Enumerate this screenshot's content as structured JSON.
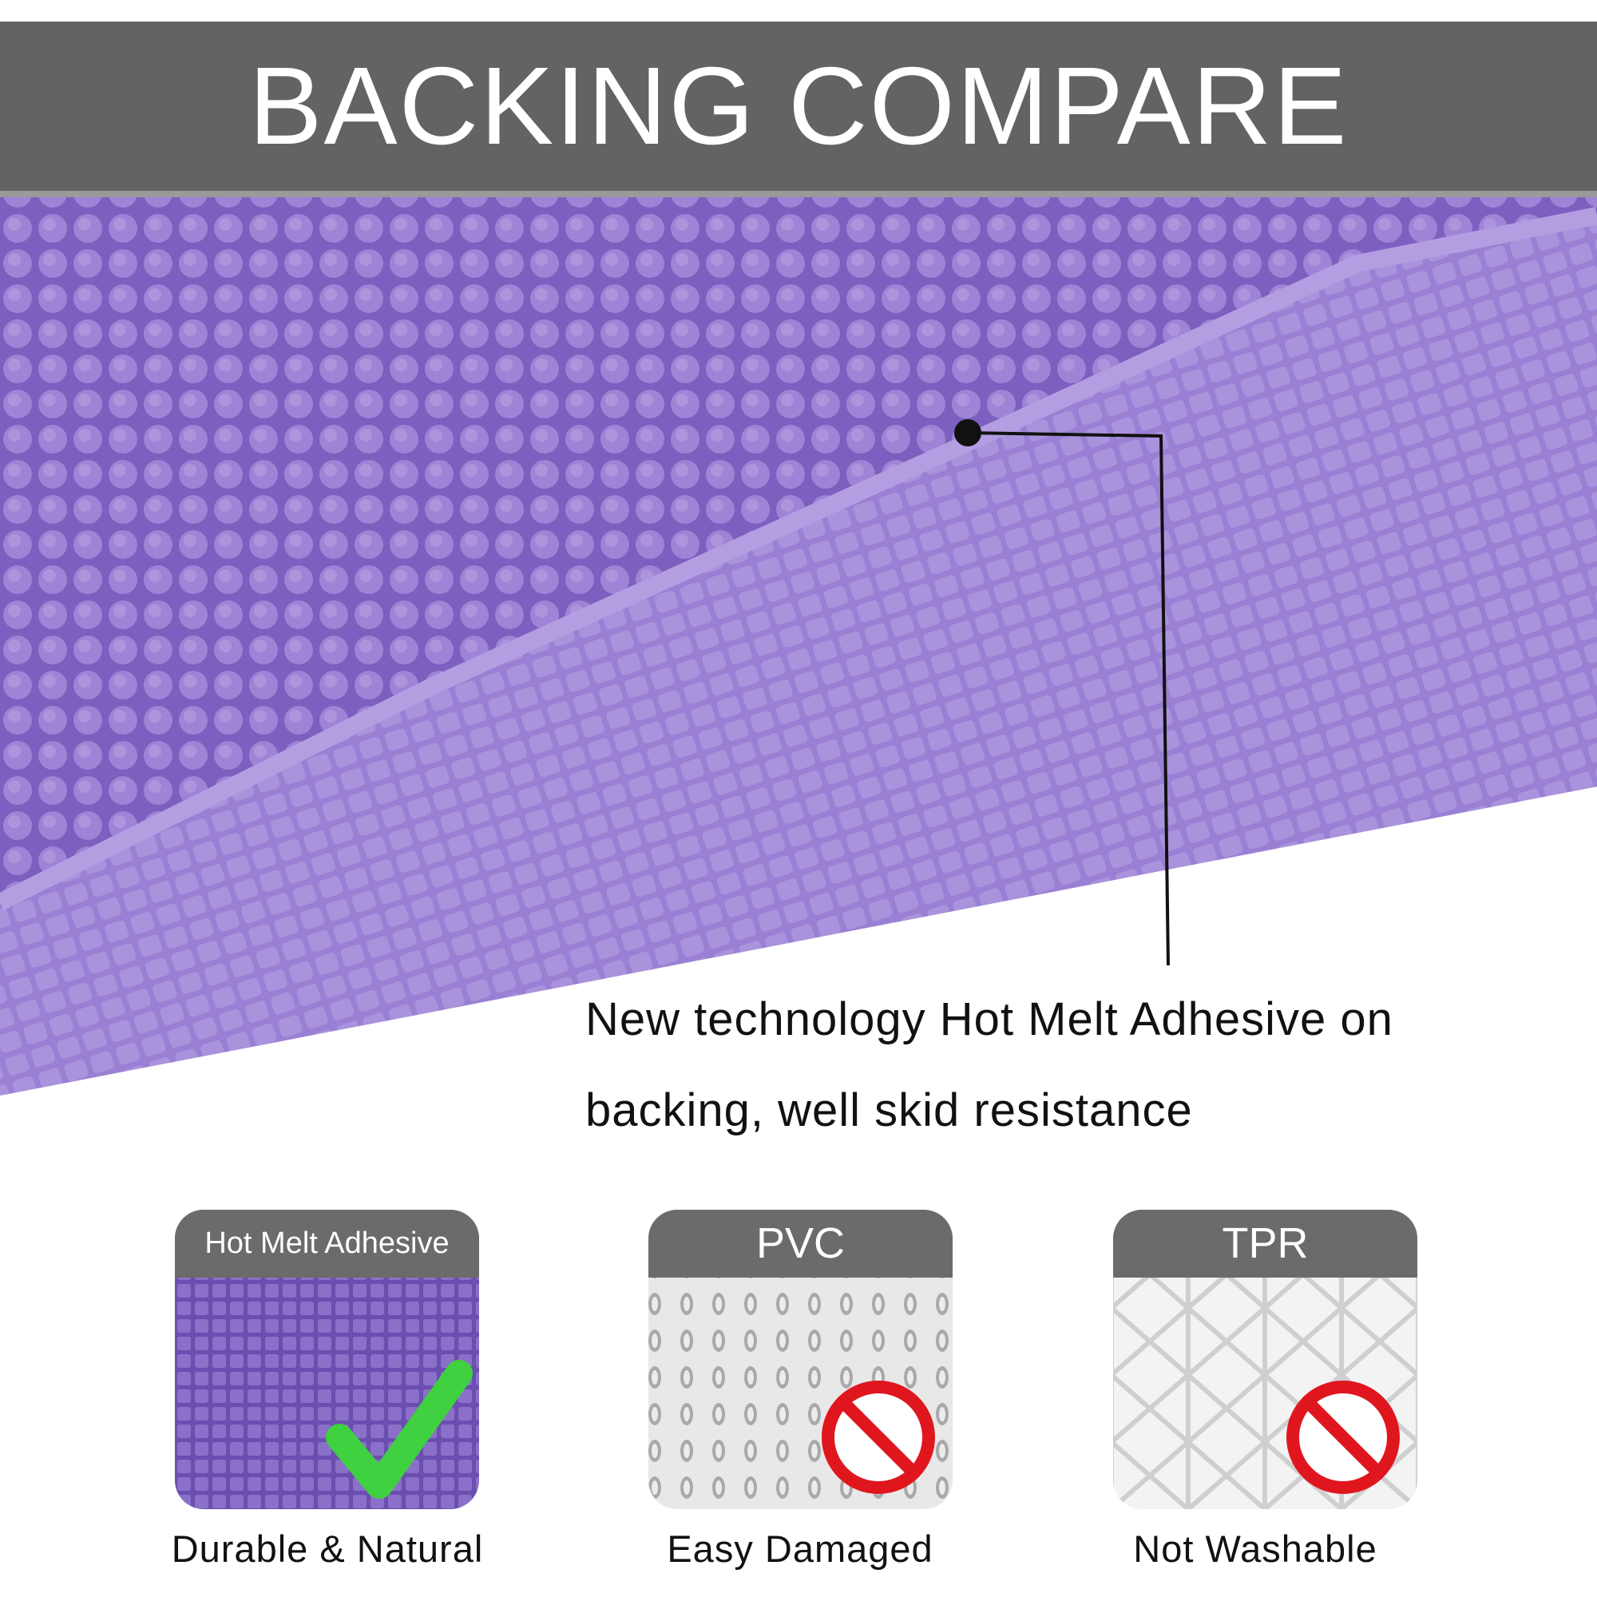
{
  "header": {
    "title": "BACKING COMPARE"
  },
  "callout": {
    "text": "New technology Hot Melt Adhesive on backing, well skid resistance"
  },
  "cards": [
    {
      "label": "Hot Melt Adhesive",
      "caption": "Durable & Natural"
    },
    {
      "label": "PVC",
      "caption": "Easy Damaged"
    },
    {
      "label": "TPR",
      "caption": "Not Washable"
    }
  ]
}
